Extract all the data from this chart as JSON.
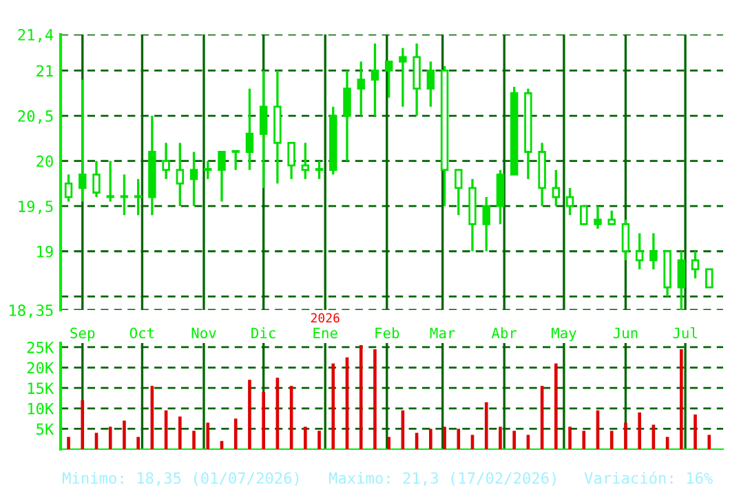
{
  "chart_data": [
    {
      "type": "candlestick",
      "x": [
        "2025-08-25",
        "2025-09-01",
        "2025-09-08",
        "2025-09-15",
        "2025-09-22",
        "2025-09-29",
        "2025-10-06",
        "2025-10-13",
        "2025-10-20",
        "2025-10-27",
        "2025-11-03",
        "2025-11-10",
        "2025-11-17",
        "2025-11-24",
        "2025-12-01",
        "2025-12-08",
        "2025-12-15",
        "2025-12-22",
        "2025-12-29",
        "2026-01-05",
        "2026-01-12",
        "2026-01-19",
        "2026-01-26",
        "2026-02-02",
        "2026-02-09",
        "2026-02-16",
        "2026-02-23",
        "2026-03-02",
        "2026-03-09",
        "2026-03-16",
        "2026-03-23",
        "2026-03-30",
        "2026-04-06",
        "2026-04-13",
        "2026-04-20",
        "2026-04-27",
        "2026-05-04",
        "2026-05-11",
        "2026-05-18",
        "2026-05-25",
        "2026-06-01",
        "2026-06-08",
        "2026-06-15",
        "2026-06-22",
        "2026-06-29",
        "2026-07-06",
        "2026-07-13"
      ],
      "ohlc": [
        [
          19.75,
          19.85,
          19.55,
          19.6
        ],
        [
          19.7,
          20.9,
          19.55,
          19.85
        ],
        [
          19.85,
          20.0,
          19.6,
          19.65
        ],
        [
          19.6,
          20.0,
          19.55,
          19.6
        ],
        [
          19.6,
          19.85,
          19.4,
          19.6
        ],
        [
          19.6,
          19.8,
          19.4,
          19.6
        ],
        [
          19.6,
          20.5,
          19.4,
          20.1
        ],
        [
          20.0,
          20.2,
          19.8,
          19.9
        ],
        [
          19.9,
          20.2,
          19.5,
          19.75
        ],
        [
          19.8,
          20.1,
          19.5,
          19.9
        ],
        [
          19.9,
          20.0,
          19.8,
          19.9
        ],
        [
          19.9,
          20.1,
          19.55,
          20.1
        ],
        [
          20.1,
          20.1,
          19.9,
          20.1
        ],
        [
          20.1,
          20.8,
          19.9,
          20.3
        ],
        [
          20.3,
          21.0,
          19.7,
          20.6
        ],
        [
          20.6,
          21.0,
          19.75,
          20.2
        ],
        [
          20.2,
          20.2,
          19.8,
          19.95
        ],
        [
          19.95,
          20.2,
          19.8,
          19.9
        ],
        [
          19.9,
          20.0,
          19.8,
          19.9
        ],
        [
          19.9,
          20.6,
          19.85,
          20.5
        ],
        [
          20.5,
          21.0,
          20.0,
          20.8
        ],
        [
          20.8,
          21.1,
          20.5,
          20.9
        ],
        [
          20.9,
          21.3,
          20.5,
          21.0
        ],
        [
          21.0,
          21.1,
          20.7,
          21.1
        ],
        [
          21.1,
          21.25,
          20.6,
          21.15
        ],
        [
          21.15,
          21.3,
          20.5,
          20.8
        ],
        [
          20.8,
          21.1,
          20.6,
          21.0
        ],
        [
          21.0,
          21.05,
          19.5,
          19.9
        ],
        [
          19.9,
          19.9,
          19.4,
          19.7
        ],
        [
          19.7,
          19.8,
          19.0,
          19.3
        ],
        [
          19.3,
          19.6,
          19.0,
          19.5
        ],
        [
          19.5,
          19.9,
          19.3,
          19.85
        ],
        [
          19.85,
          20.82,
          19.85,
          20.75
        ],
        [
          20.75,
          20.8,
          19.8,
          20.1
        ],
        [
          20.1,
          20.2,
          19.5,
          19.7
        ],
        [
          19.7,
          19.9,
          19.5,
          19.6
        ],
        [
          19.6,
          19.7,
          19.4,
          19.5
        ],
        [
          19.5,
          19.5,
          19.3,
          19.3
        ],
        [
          19.3,
          19.5,
          19.25,
          19.35
        ],
        [
          19.35,
          19.45,
          19.3,
          19.3
        ],
        [
          19.3,
          19.35,
          18.9,
          19.0
        ],
        [
          19.0,
          19.2,
          18.8,
          18.9
        ],
        [
          18.9,
          19.2,
          18.8,
          19.0
        ],
        [
          19.0,
          19.0,
          18.5,
          18.6
        ],
        [
          18.6,
          19.0,
          18.35,
          18.9
        ],
        [
          18.9,
          19.0,
          18.7,
          18.8
        ],
        [
          18.8,
          18.8,
          18.6,
          18.6
        ]
      ],
      "color": "#00dd00",
      "xlim": [
        "2025-08-21",
        "2026-07-20"
      ],
      "xticks": [
        {
          "value": "2025-09-01",
          "label": "Sep"
        },
        {
          "value": "2025-10-01",
          "label": "Oct"
        },
        {
          "value": "2025-11-01",
          "label": "Nov"
        },
        {
          "value": "2025-12-01",
          "label": "Dic"
        },
        {
          "value": "2026-01-01",
          "label": "Ene"
        },
        {
          "value": "2026-02-01",
          "label": "Feb"
        },
        {
          "value": "2026-03-01",
          "label": "Mar"
        },
        {
          "value": "2026-04-01",
          "label": "Abr"
        },
        {
          "value": "2026-05-01",
          "label": "May"
        },
        {
          "value": "2026-06-01",
          "label": "Jun"
        },
        {
          "value": "2026-07-01",
          "label": "Jul"
        }
      ],
      "ylim": [
        18.35,
        21.4
      ],
      "yticks": [
        {
          "value": 18.35,
          "label": "18,35"
        },
        {
          "value": 18.5,
          "label": null
        },
        19,
        {
          "value": 19.5,
          "label": "19,5"
        },
        20,
        {
          "value": 20.5,
          "label": "20,5"
        },
        21,
        {
          "value": 21.4,
          "label": "21,4"
        }
      ],
      "grid": true,
      "annotations": [
        "2026"
      ]
    },
    {
      "type": "bar",
      "x": [
        "2025-08-25",
        "2025-09-01",
        "2025-09-08",
        "2025-09-15",
        "2025-09-22",
        "2025-09-29",
        "2025-10-06",
        "2025-10-13",
        "2025-10-20",
        "2025-10-27",
        "2025-11-03",
        "2025-11-10",
        "2025-11-17",
        "2025-11-24",
        "2025-12-01",
        "2025-12-08",
        "2025-12-15",
        "2025-12-22",
        "2025-12-29",
        "2026-01-05",
        "2026-01-12",
        "2026-01-19",
        "2026-01-26",
        "2026-02-02",
        "2026-02-09",
        "2026-02-16",
        "2026-02-23",
        "2026-03-02",
        "2026-03-09",
        "2026-03-16",
        "2026-03-23",
        "2026-03-30",
        "2026-04-06",
        "2026-04-13",
        "2026-04-20",
        "2026-04-27",
        "2026-05-04",
        "2026-05-11",
        "2026-05-18",
        "2026-05-25",
        "2026-06-01",
        "2026-06-08",
        "2026-06-15",
        "2026-06-22",
        "2026-06-29",
        "2026-07-06",
        "2026-07-13"
      ],
      "values": [
        3000,
        12000,
        4000,
        5500,
        7000,
        3000,
        15500,
        9500,
        8000,
        4500,
        6500,
        2000,
        7500,
        17000,
        14000,
        17500,
        15500,
        5500,
        4500,
        21000,
        22500,
        25500,
        24500,
        3000,
        9500,
        4000,
        5000,
        5500,
        5000,
        3500,
        11500,
        5500,
        4500,
        3500,
        15500,
        21000,
        5500,
        4500,
        9500,
        4500,
        6500,
        9000,
        6000,
        3000,
        24500,
        8500,
        3500
      ],
      "color": "#dd0000",
      "xlim": [
        "2025-08-21",
        "2026-07-20"
      ],
      "xticks": [
        {
          "value": "2025-09-01",
          "label": null
        },
        {
          "value": "2025-10-01",
          "label": null
        },
        {
          "value": "2025-11-01",
          "label": null
        },
        {
          "value": "2025-12-01",
          "label": null
        },
        {
          "value": "2026-01-01",
          "label": null
        },
        {
          "value": "2026-02-01",
          "label": null
        },
        {
          "value": "2026-03-01",
          "label": null
        },
        {
          "value": "2026-04-01",
          "label": null
        },
        {
          "value": "2026-05-01",
          "label": null
        },
        {
          "value": "2026-06-01",
          "label": null
        },
        {
          "value": "2026-07-01",
          "label": null
        }
      ],
      "ylim": [
        0,
        26000
      ],
      "yticks": [
        {
          "value": 5000,
          "label": "5K"
        },
        {
          "value": 10000,
          "label": "10K"
        },
        {
          "value": 15000,
          "label": "15K"
        },
        {
          "value": 20000,
          "label": "20K"
        },
        {
          "value": 25000,
          "label": "25K"
        }
      ],
      "tick_labels": "y",
      "grid": true,
      "annotations": [
        "Minimo: 18,35 (01/07/2026)",
        "Maximo: 21,3 (17/02/2026)",
        "Variación: 16%"
      ]
    }
  ]
}
